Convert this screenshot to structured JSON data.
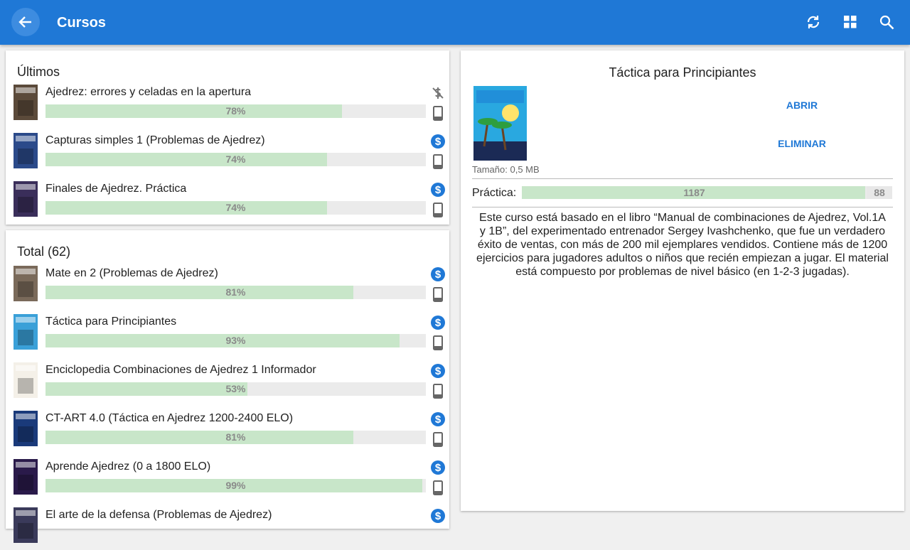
{
  "header": {
    "title": "Cursos"
  },
  "recent": {
    "title": "Últimos",
    "items": [
      {
        "title": "Ajedrez: errores y celadas en la apertura",
        "progress": 78,
        "progress_label": "78%"
      },
      {
        "title": "Capturas simples 1 (Problemas de Ajedrez)",
        "progress": 74,
        "progress_label": "74%"
      },
      {
        "title": "Finales de Ajedrez. Práctica",
        "progress": 74,
        "progress_label": "74%"
      }
    ]
  },
  "total": {
    "title": "Total (62)",
    "items": [
      {
        "title": "Mate en 2 (Problemas de Ajedrez)",
        "progress": 81,
        "progress_label": "81%"
      },
      {
        "title": "Táctica para Principiantes",
        "progress": 93,
        "progress_label": "93%"
      },
      {
        "title": "Enciclopedia Combinaciones de Ajedrez 1 Informador",
        "progress": 53,
        "progress_label": "53%"
      },
      {
        "title": "CT-ART 4.0 (Táctica en Ajedrez 1200-2400 ELO)",
        "progress": 81,
        "progress_label": "81%"
      },
      {
        "title": "Aprende Ajedrez (0 a 1800 ELO)",
        "progress": 99,
        "progress_label": "99%"
      },
      {
        "title": "El arte de la defensa (Problemas de Ajedrez)"
      }
    ]
  },
  "detail": {
    "title": "Táctica para Principiantes",
    "open": "ABRIR",
    "delete": "ELIMINAR",
    "size": "Tamaño: 0,5 MB",
    "practice_label": "Práctica:",
    "practice": {
      "solved": 1187,
      "remaining": 88
    },
    "description": "Este curso está basado en el libro “Manual de combinaciones de Ajedrez, Vol.1A y 1B”, del experimentado entrenador Sergey Ivashchenko, que fue un verdadero éxito de ventas, con más de 200 mil ejemplares vendidos. Contiene más de 1200 ejercicios para jugadores adultos o niños  que recién empiezan a jugar. El material está compuesto por problemas de nivel básico (en 1-2-3 jugadas)."
  }
}
